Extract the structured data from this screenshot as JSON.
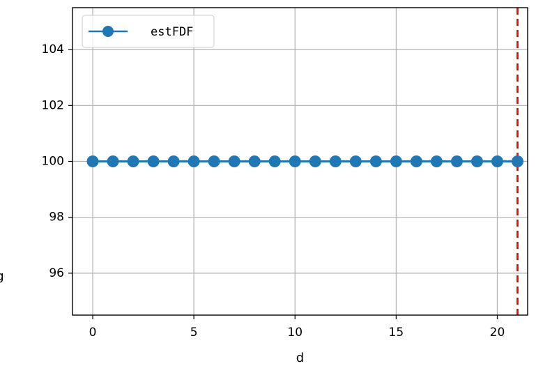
{
  "chart_data": {
    "type": "line",
    "title": "",
    "xlabel": "d",
    "ylabel": "g",
    "xlim": [
      -1,
      21.5
    ],
    "ylim": [
      94.5,
      105.5
    ],
    "x_ticks": [
      "0",
      "5",
      "10",
      "15",
      "20"
    ],
    "x_tick_values": [
      0,
      5,
      10,
      15,
      20
    ],
    "y_ticks": [
      "96",
      "98",
      "100",
      "102",
      "104"
    ],
    "y_tick_values": [
      96,
      98,
      100,
      102,
      104
    ],
    "grid": true,
    "legend_position": "top-left",
    "series": [
      {
        "name": "estFDF",
        "color": "#1f77b4",
        "marker": "circle",
        "x": [
          0,
          1,
          2,
          3,
          4,
          5,
          6,
          7,
          8,
          9,
          10,
          11,
          12,
          13,
          14,
          15,
          16,
          17,
          18,
          19,
          20,
          21
        ],
        "y": [
          100,
          100,
          100,
          100,
          100,
          100,
          100,
          100,
          100,
          100,
          100,
          100,
          100,
          100,
          100,
          100,
          100,
          100,
          100,
          100,
          100,
          100
        ]
      }
    ],
    "vertical_line": {
      "x": 21,
      "color": "#ff0000",
      "style": "dashed"
    }
  }
}
